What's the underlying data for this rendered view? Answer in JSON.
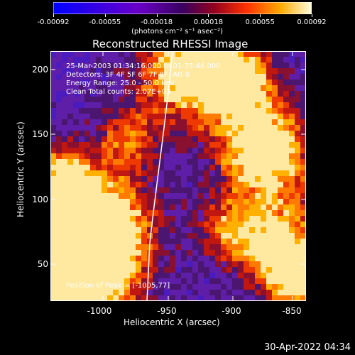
{
  "colorbar": {
    "ticks": [
      "-0.00092",
      "-0.00055",
      "-0.00018",
      "0.00018",
      "0.00055",
      "0.00092"
    ],
    "units": "(photons cm⁻² s⁻¹ asec⁻²)"
  },
  "title": "Reconstructed RHESSI Image",
  "annotation": {
    "time": "25-Mar-2003 01:34:16.000 to 01:35:44.000",
    "detectors": "Detectors: 3F 4F 5F 6F 7F 8F, Att 0",
    "energy": "Energy Range: 25.0 - 50.0 keV",
    "clean": "Clean    Total counts: 2.07E+03",
    "peak": "Position of Peak = [-1005,77]"
  },
  "axes": {
    "xlabel": "Heliocentric X (arcsec)",
    "ylabel": "Heliocentric Y (arcsec)",
    "xticks": [
      "-1000",
      "-950",
      "-900",
      "-850"
    ],
    "yticks": [
      "200",
      "150",
      "100",
      "50"
    ]
  },
  "footer": {
    "timestamp": "30-Apr-2022 04:34"
  }
}
